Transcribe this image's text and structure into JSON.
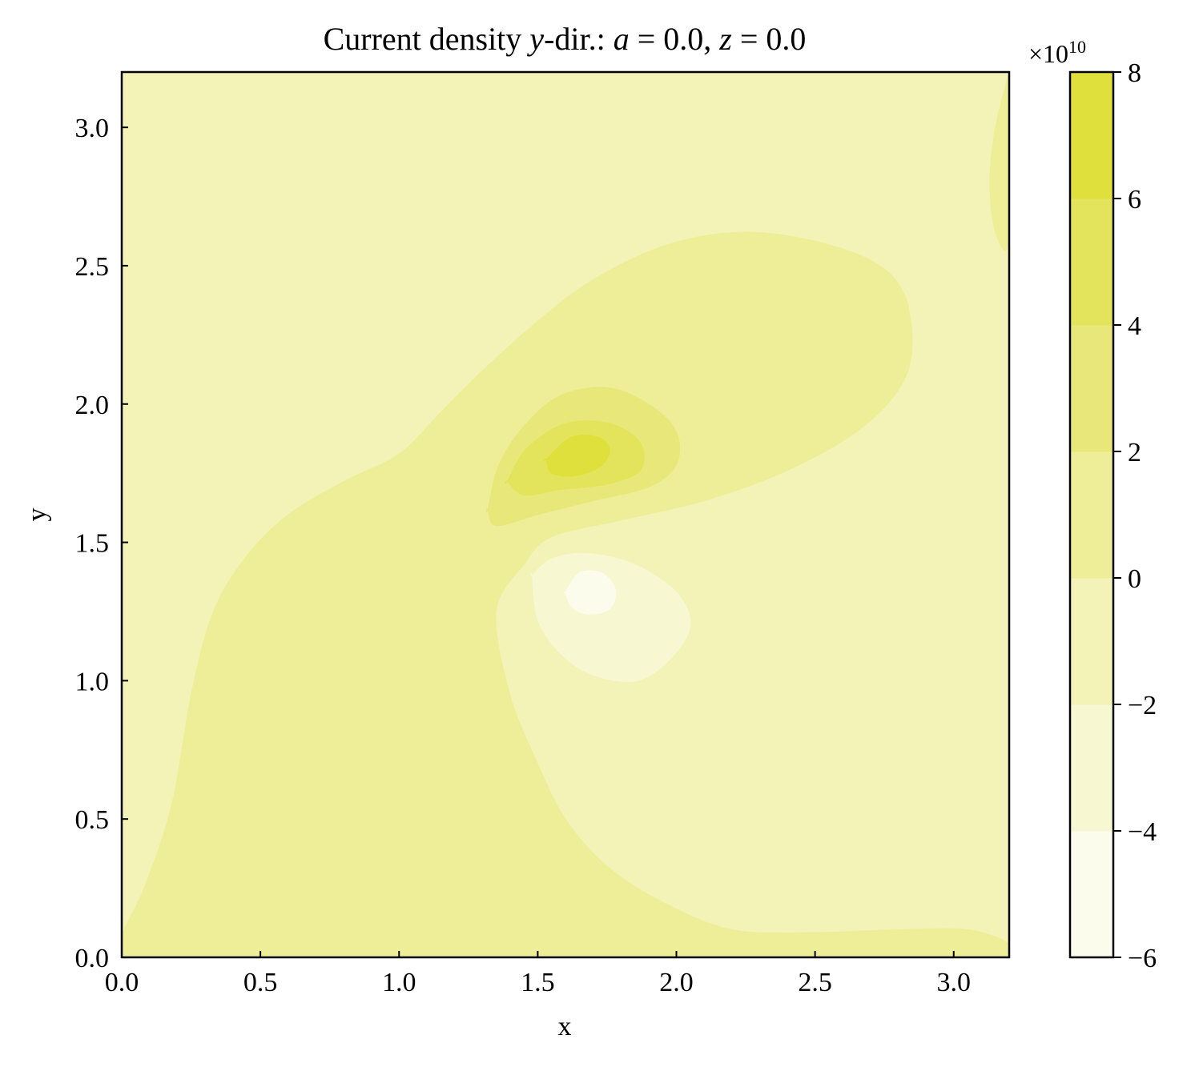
{
  "chart_data": {
    "type": "contourf",
    "title_parts": [
      {
        "text": "Current density ",
        "italic": false
      },
      {
        "text": "y",
        "italic": true
      },
      {
        "text": "-dir.: ",
        "italic": false
      },
      {
        "text": "a",
        "italic": true
      },
      {
        "text": " = 0.0, ",
        "italic": false
      },
      {
        "text": "z",
        "italic": true
      },
      {
        "text": " = 0.0",
        "italic": false
      }
    ],
    "xlabel": "x",
    "ylabel": "y",
    "xlim": [
      0.0,
      3.2
    ],
    "ylim": [
      0.0,
      3.2
    ],
    "x_ticks": [
      0.0,
      0.5,
      1.0,
      1.5,
      2.0,
      2.5,
      3.0
    ],
    "y_ticks": [
      0.0,
      0.5,
      1.0,
      1.5,
      2.0,
      2.5,
      3.0
    ],
    "x_tick_labels": [
      "0.0",
      "0.5",
      "1.0",
      "1.5",
      "2.0",
      "2.5",
      "3.0"
    ],
    "y_tick_labels": [
      "0.0",
      "0.5",
      "1.0",
      "1.5",
      "2.0",
      "2.5",
      "3.0"
    ],
    "colorbar": {
      "multiplier_base": "×10",
      "multiplier_exp": "10",
      "levels": [
        -6,
        -4,
        -2,
        0,
        2,
        4,
        6,
        8
      ],
      "tick_labels": [
        "−6",
        "−4",
        "−2",
        "0",
        "2",
        "4",
        "6",
        "8"
      ],
      "colors": [
        "#fcfced",
        "#f7f7d2",
        "#f3f3b7",
        "#eeee98",
        "#e8e87a",
        "#e4e45c",
        "#e0e03c"
      ]
    },
    "regions": [
      {
        "band": 2,
        "points": [
          [
            0,
            0
          ],
          [
            3.2,
            0
          ],
          [
            3.2,
            3.2
          ],
          [
            0,
            3.2
          ]
        ]
      },
      {
        "band": 3,
        "points": [
          [
            0,
            0.08
          ],
          [
            0.08,
            0.25
          ],
          [
            0.18,
            0.55
          ],
          [
            0.25,
            0.95
          ],
          [
            0.33,
            1.25
          ],
          [
            0.45,
            1.45
          ],
          [
            0.6,
            1.6
          ],
          [
            0.8,
            1.72
          ],
          [
            1.0,
            1.82
          ],
          [
            1.15,
            1.97
          ],
          [
            1.3,
            2.12
          ],
          [
            1.5,
            2.3
          ],
          [
            1.7,
            2.45
          ],
          [
            1.95,
            2.57
          ],
          [
            2.2,
            2.62
          ],
          [
            2.45,
            2.6
          ],
          [
            2.7,
            2.52
          ],
          [
            2.82,
            2.4
          ],
          [
            2.85,
            2.2
          ],
          [
            2.8,
            2.05
          ],
          [
            2.65,
            1.9
          ],
          [
            2.4,
            1.76
          ],
          [
            2.1,
            1.65
          ],
          [
            1.8,
            1.58
          ],
          [
            1.55,
            1.52
          ],
          [
            1.45,
            1.42
          ],
          [
            1.35,
            1.25
          ],
          [
            1.4,
            0.95
          ],
          [
            1.5,
            0.7
          ],
          [
            1.6,
            0.5
          ],
          [
            1.75,
            0.33
          ],
          [
            1.95,
            0.2
          ],
          [
            2.2,
            0.1
          ],
          [
            2.5,
            0.09
          ],
          [
            2.8,
            0.1
          ],
          [
            3.05,
            0.1
          ],
          [
            3.2,
            0.05
          ],
          [
            3.2,
            0
          ],
          [
            0,
            0
          ]
        ]
      },
      {
        "band": 3,
        "points": [
          [
            3.2,
            3.2
          ],
          [
            3.2,
            2.6
          ],
          [
            3.15,
            2.62
          ],
          [
            3.13,
            2.8
          ],
          [
            3.15,
            3.0
          ],
          [
            3.2,
            3.2
          ]
        ]
      },
      {
        "band": 4,
        "points": [
          [
            1.32,
            1.62
          ],
          [
            1.36,
            1.78
          ],
          [
            1.45,
            1.92
          ],
          [
            1.58,
            2.03
          ],
          [
            1.75,
            2.06
          ],
          [
            1.9,
            2.0
          ],
          [
            2.0,
            1.9
          ],
          [
            2.0,
            1.78
          ],
          [
            1.9,
            1.7
          ],
          [
            1.7,
            1.65
          ],
          [
            1.5,
            1.6
          ],
          [
            1.35,
            1.56
          ],
          [
            1.32,
            1.62
          ]
        ]
      },
      {
        "band": 5,
        "points": [
          [
            1.39,
            1.72
          ],
          [
            1.46,
            1.84
          ],
          [
            1.6,
            1.93
          ],
          [
            1.76,
            1.93
          ],
          [
            1.87,
            1.86
          ],
          [
            1.87,
            1.76
          ],
          [
            1.75,
            1.71
          ],
          [
            1.58,
            1.69
          ],
          [
            1.45,
            1.67
          ],
          [
            1.39,
            1.72
          ]
        ]
      },
      {
        "band": 6,
        "points": [
          [
            1.53,
            1.8
          ],
          [
            1.62,
            1.88
          ],
          [
            1.72,
            1.88
          ],
          [
            1.76,
            1.83
          ],
          [
            1.72,
            1.77
          ],
          [
            1.63,
            1.74
          ],
          [
            1.55,
            1.75
          ],
          [
            1.53,
            1.8
          ]
        ]
      },
      {
        "band": 1,
        "points": [
          [
            1.48,
            1.38
          ],
          [
            1.55,
            1.44
          ],
          [
            1.68,
            1.46
          ],
          [
            1.85,
            1.42
          ],
          [
            2.0,
            1.32
          ],
          [
            2.05,
            1.2
          ],
          [
            1.98,
            1.08
          ],
          [
            1.86,
            1.0
          ],
          [
            1.7,
            1.02
          ],
          [
            1.58,
            1.1
          ],
          [
            1.5,
            1.22
          ],
          [
            1.48,
            1.38
          ]
        ]
      },
      {
        "band": 0,
        "points": [
          [
            1.6,
            1.32
          ],
          [
            1.65,
            1.39
          ],
          [
            1.73,
            1.39
          ],
          [
            1.78,
            1.33
          ],
          [
            1.76,
            1.26
          ],
          [
            1.68,
            1.24
          ],
          [
            1.62,
            1.27
          ],
          [
            1.6,
            1.32
          ]
        ]
      }
    ]
  }
}
